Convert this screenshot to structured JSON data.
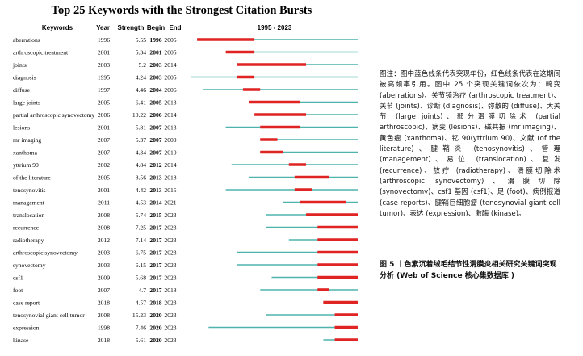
{
  "chart_data": {
    "type": "table",
    "title": "Top 25 Keywords with the Strongest Citation Bursts",
    "columns": [
      "Keywords",
      "Year",
      "Strength",
      "Begin",
      "End",
      "1995 - 2023"
    ],
    "timeline_start": 1995,
    "timeline_end": 2023,
    "rows": [
      {
        "keyword": "aberrations",
        "year": "1996",
        "strength": "5.55",
        "begin": "1996",
        "end": "2005"
      },
      {
        "keyword": "arthroscopic treatment",
        "year": "2001",
        "strength": "5.34",
        "begin": "2001",
        "end": "2005"
      },
      {
        "keyword": "joints",
        "year": "2003",
        "strength": "5.2",
        "begin": "2003",
        "end": "2014"
      },
      {
        "keyword": "diagnosis",
        "year": "1995",
        "strength": "4.24",
        "begin": "2003",
        "end": "2005"
      },
      {
        "keyword": "diffuse",
        "year": "1997",
        "strength": "4.46",
        "begin": "2004",
        "end": "2006"
      },
      {
        "keyword": "large joints",
        "year": "2005",
        "strength": "6.41",
        "begin": "2005",
        "end": "2013"
      },
      {
        "keyword": "partial arthroscopic synovectomy",
        "year": "2006",
        "strength": "10.22",
        "begin": "2006",
        "end": "2014"
      },
      {
        "keyword": "lesions",
        "year": "2001",
        "strength": "5.81",
        "begin": "2007",
        "end": "2013"
      },
      {
        "keyword": "mr imaging",
        "year": "2007",
        "strength": "5.37",
        "begin": "2007",
        "end": "2009"
      },
      {
        "keyword": "xanthoma",
        "year": "2007",
        "strength": "4.34",
        "begin": "2007",
        "end": "2010"
      },
      {
        "keyword": "yttrium 90",
        "year": "2002",
        "strength": "4.84",
        "begin": "2012",
        "end": "2014"
      },
      {
        "keyword": "of the literature",
        "year": "2005",
        "strength": "8.56",
        "begin": "2013",
        "end": "2018"
      },
      {
        "keyword": "tenosynovitis",
        "year": "2001",
        "strength": "4.42",
        "begin": "2013",
        "end": "2015"
      },
      {
        "keyword": "management",
        "year": "2011",
        "strength": "4.53",
        "begin": "2014",
        "end": "2021"
      },
      {
        "keyword": "translocation",
        "year": "2008",
        "strength": "5.74",
        "begin": "2015",
        "end": "2023"
      },
      {
        "keyword": "recurrence",
        "year": "2008",
        "strength": "7.25",
        "begin": "2017",
        "end": "2023"
      },
      {
        "keyword": "radiotherapy",
        "year": "2012",
        "strength": "7.14",
        "begin": "2017",
        "end": "2023"
      },
      {
        "keyword": "arthroscopic synovectomy",
        "year": "2003",
        "strength": "6.75",
        "begin": "2017",
        "end": "2023"
      },
      {
        "keyword": "synovectomy",
        "year": "2003",
        "strength": "6.15",
        "begin": "2017",
        "end": "2023"
      },
      {
        "keyword": "csf1",
        "year": "2009",
        "strength": "5.68",
        "begin": "2017",
        "end": "2023"
      },
      {
        "keyword": "foot",
        "year": "2007",
        "strength": "4.7",
        "begin": "2017",
        "end": "2018"
      },
      {
        "keyword": "case report",
        "year": "2018",
        "strength": "4.57",
        "begin": "2018",
        "end": "2023"
      },
      {
        "keyword": "tenosynovial giant cell tumor",
        "year": "2008",
        "strength": "15.23",
        "begin": "2020",
        "end": "2023"
      },
      {
        "keyword": "expression",
        "year": "1998",
        "strength": "7.46",
        "begin": "2020",
        "end": "2023"
      },
      {
        "keyword": "kinase",
        "year": "2018",
        "strength": "5.61",
        "begin": "2020",
        "end": "2023"
      }
    ],
    "colors": {
      "line": "#4fb3ad",
      "burst": "#e02424"
    }
  },
  "note_text": "图注：图中蓝色线条代表突现年份，红色线条代表在这期间被高频率引用。图中 25 个突现关键词依次为：畸变 (aberrations)、关节镜治疗 (arthroscopic treatment)、关节 (joints)、诊断 (diagnosis)、弥散的 (diffuse)、大关节 (large joints)、部分滑膜切除术 (partial arthroscopic)、病变 (lesions)、磁共振 (mr imaging)、黄色瘤 (xanthoma)、钇 90(yttrium 90)、文献 (of the literature)、腱鞘炎 (tenosynovitis)、管理 (management)、易位 (translocation)、复发 (recurrence)、放疗 (radiotherapy)、滑膜切除术 (arthroscopic synovectomy)、滑膜切除 (synovectomy)、csf1 基因 (csf1)、足 (foot)、病例报道 (case reports)、腱鞘巨细胞瘤 (tenosynovial giant cell tumor)、表达 (expression)、激酶 (kinase)。",
  "caption_text": "图 5 丨色素沉着绒毛结节性滑膜炎相关研究关键词突现分析 (Web of Science 核心集数据库 )"
}
